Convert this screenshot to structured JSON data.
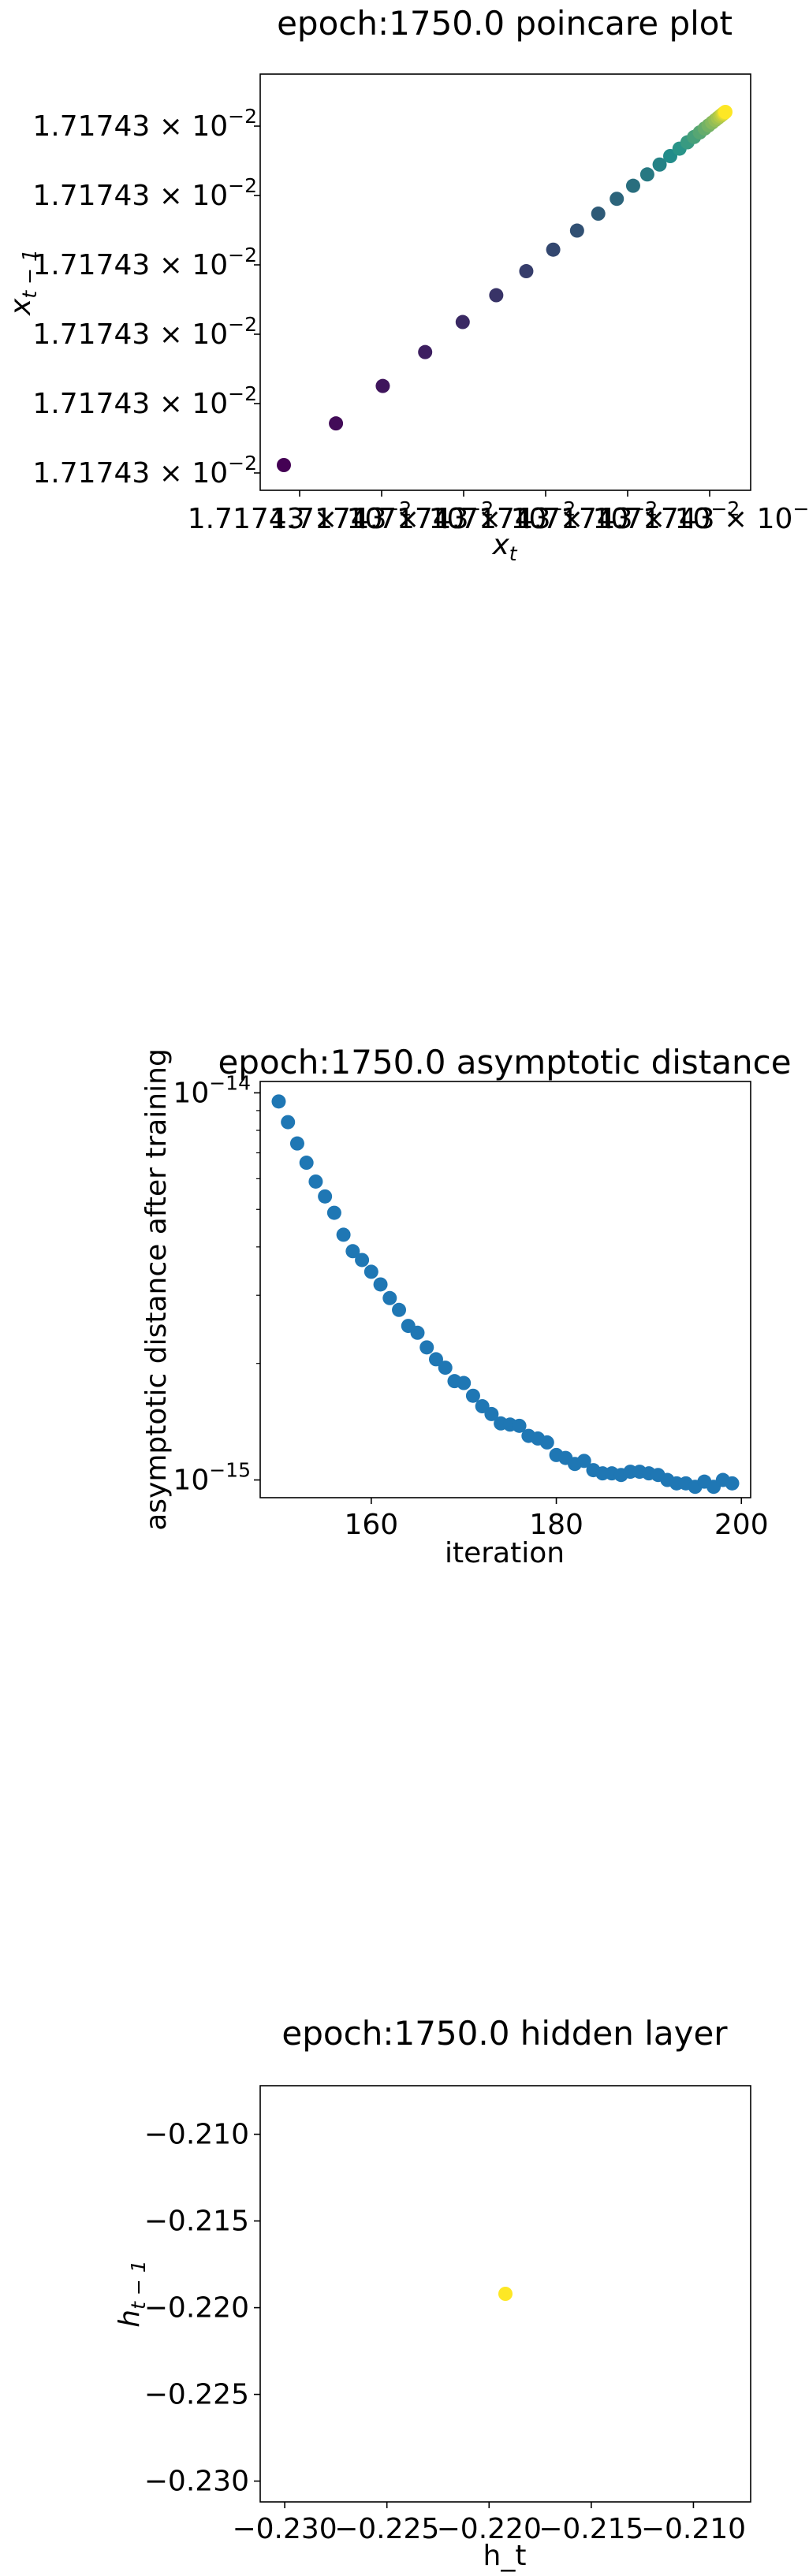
{
  "chart_data": [
    {
      "type": "scatter",
      "title": "epoch:1750.0 poincare plot",
      "xlabel_base": "x",
      "xlabel_sub": "t",
      "ylabel_base": "x",
      "ylabel_sub": "t − 1",
      "x_tick_labels": [
        "1.71743 × 10",
        "1.71743 × 10",
        "1.71743 × 10",
        "1.71743 × 10",
        "1.71743 × 10",
        "1.71743 × 10"
      ],
      "x_tick_exponent": "−2",
      "y_tick_labels": [
        "1.71743 × 10",
        "1.71743 × 10",
        "1.71743 × 10",
        "1.71743 × 10",
        "1.71743 × 10",
        "1.71743 × 10"
      ],
      "y_tick_exponent": "−2",
      "colormap": "viridis",
      "colors": {
        "start": "#440154",
        "mid": "#21918c",
        "end": "#fde725"
      },
      "x": [
        0.0,
        0.118,
        0.224,
        0.32,
        0.405,
        0.481,
        0.549,
        0.61,
        0.664,
        0.712,
        0.754,
        0.791,
        0.823,
        0.851,
        0.875,
        0.896,
        0.914,
        0.929,
        0.942,
        0.953,
        0.962,
        0.97,
        0.977,
        0.983,
        0.988,
        0.992,
        0.995,
        0.997,
        0.999,
        1.0
      ],
      "y": [
        0.0,
        0.118,
        0.224,
        0.32,
        0.405,
        0.481,
        0.549,
        0.61,
        0.664,
        0.712,
        0.754,
        0.791,
        0.823,
        0.851,
        0.875,
        0.896,
        0.914,
        0.929,
        0.942,
        0.953,
        0.962,
        0.97,
        0.977,
        0.983,
        0.988,
        0.992,
        0.995,
        0.997,
        0.999,
        1.0
      ]
    },
    {
      "type": "scatter",
      "title": "epoch:1750.0 asymptotic distance",
      "xlabel": "iteration",
      "ylabel": "asymptotic distance after training",
      "x_ticks": [
        160,
        180,
        200
      ],
      "xlim": [
        148,
        201
      ],
      "y_scale": "log",
      "y_tick_base": "10",
      "y_ticks": [
        {
          "value": 1e-15,
          "exponent": "−15"
        },
        {
          "value": 1e-14,
          "exponent": "−14"
        }
      ],
      "ylim": [
        9e-16,
        1.07e-14
      ],
      "color": "#1f77b4",
      "x": [
        150,
        151,
        152,
        153,
        154,
        155,
        156,
        157,
        158,
        159,
        160,
        161,
        162,
        163,
        164,
        165,
        166,
        167,
        168,
        169,
        170,
        171,
        172,
        173,
        174,
        175,
        176,
        177,
        178,
        179,
        180,
        181,
        182,
        183,
        184,
        185,
        186,
        187,
        188,
        189,
        190,
        191,
        192,
        193,
        194,
        195,
        196,
        197,
        198,
        199
      ],
      "y": [
        9.5e-15,
        8.4e-15,
        7.4e-15,
        6.6e-15,
        5.9e-15,
        5.4e-15,
        4.9e-15,
        4.3e-15,
        3.9e-15,
        3.7e-15,
        3.45e-15,
        3.2e-15,
        2.95e-15,
        2.75e-15,
        2.5e-15,
        2.4e-15,
        2.2e-15,
        2.05e-15,
        1.95e-15,
        1.8e-15,
        1.78e-15,
        1.65e-15,
        1.55e-15,
        1.48e-15,
        1.4e-15,
        1.39e-15,
        1.38e-15,
        1.3e-15,
        1.28e-15,
        1.25e-15,
        1.16e-15,
        1.14e-15,
        1.1e-15,
        1.12e-15,
        1.06e-15,
        1.04e-15,
        1.04e-15,
        1.03e-15,
        1.05e-15,
        1.05e-15,
        1.04e-15,
        1.03e-15,
        1e-15,
        9.8e-16,
        9.8e-16,
        9.6e-16,
        9.9e-16,
        9.6e-16,
        1e-15,
        9.8e-16
      ]
    },
    {
      "type": "scatter",
      "title": "epoch:1750.0 hidden layer",
      "xlabel": "h_t",
      "ylabel_base": "h",
      "ylabel_sub": "t − 1",
      "x_ticks": [
        -0.23,
        -0.225,
        -0.22,
        -0.215,
        -0.21
      ],
      "x_tick_labels": [
        "−0.230",
        "−0.225",
        "−0.220",
        "−0.215",
        "−0.210"
      ],
      "xlim": [
        -0.2312,
        -0.2072
      ],
      "y_ticks": [
        -0.23,
        -0.225,
        -0.22,
        -0.215,
        -0.21
      ],
      "y_tick_labels": [
        "−0.230",
        "−0.225",
        "−0.220",
        "−0.215",
        "−0.210"
      ],
      "ylim": [
        -0.2312,
        -0.2072
      ],
      "color": "#fde725",
      "x": [
        -0.2192
      ],
      "y": [
        -0.2192
      ]
    }
  ]
}
